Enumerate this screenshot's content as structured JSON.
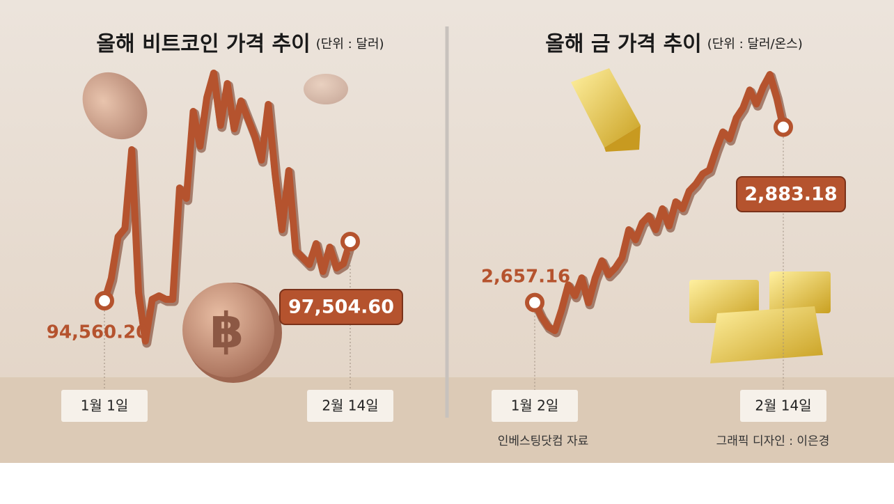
{
  "chart_data": [
    {
      "type": "line",
      "title": "올해 비트코인 가격 추이",
      "subtitle": "(단위 : 달러)",
      "categories": [
        "1월 1일",
        null,
        null,
        null,
        null,
        null,
        null,
        null,
        null,
        null,
        null,
        null,
        null,
        null,
        null,
        null,
        null,
        null,
        null,
        null,
        null,
        null,
        null,
        null,
        null,
        null,
        null,
        null,
        null,
        null,
        null,
        null,
        null,
        null,
        null,
        null,
        "2월 14일"
      ],
      "series": [
        {
          "color": "#b5532e",
          "values": [
            94560.2,
            95670,
            97747,
            98163,
            102077,
            94976,
            92551,
            94630,
            94803,
            94630,
            94630,
            100172,
            99653,
            103983,
            102251,
            104675,
            105888,
            103290,
            105368,
            103117,
            104502,
            103636,
            102770,
            101558,
            104329,
            100865,
            98094,
            101038,
            97055,
            96708,
            96362,
            97401,
            96015,
            97228,
            96189,
            96400,
            97504.6
          ],
          "value_labels": [
            "94,560.20",
            null,
            null,
            null,
            null,
            null,
            null,
            null,
            null,
            null,
            null,
            null,
            null,
            null,
            null,
            null,
            null,
            null,
            null,
            null,
            null,
            null,
            null,
            null,
            null,
            null,
            null,
            null,
            null,
            null,
            null,
            null,
            null,
            null,
            null,
            null,
            "97,504.60"
          ]
        }
      ]
    },
    {
      "type": "line",
      "title": "올해 금 가격 추이",
      "subtitle": "(단위 : 달러/온스)",
      "categories": [
        "1월 2일",
        null,
        null,
        null,
        null,
        null,
        null,
        null,
        null,
        null,
        null,
        null,
        null,
        null,
        null,
        null,
        null,
        null,
        null,
        null,
        null,
        null,
        null,
        null,
        null,
        null,
        null,
        null,
        null,
        null,
        null,
        null,
        null,
        null,
        null,
        null,
        null,
        "2월 14일"
      ],
      "series": [
        {
          "color": "#b5532e",
          "values": [
            2657.16,
            2639,
            2626,
            2621,
            2648,
            2680,
            2666,
            2689,
            2657,
            2689,
            2711,
            2693,
            2702,
            2715,
            2751,
            2738,
            2760,
            2769,
            2751,
            2778,
            2756,
            2787,
            2778,
            2801,
            2810,
            2823,
            2828,
            2854,
            2877,
            2868,
            2895,
            2908,
            2931,
            2913,
            2935,
            2951,
            2922,
            2883.18
          ],
          "value_labels": [
            "2,657.16",
            null,
            null,
            null,
            null,
            null,
            null,
            null,
            null,
            null,
            null,
            null,
            null,
            null,
            null,
            null,
            null,
            null,
            null,
            null,
            null,
            null,
            null,
            null,
            null,
            null,
            null,
            null,
            null,
            null,
            null,
            null,
            null,
            null,
            null,
            null,
            null,
            "2,883.18"
          ]
        }
      ]
    }
  ],
  "notes": {
    "source": "인베스팅닷컴 자료",
    "credit": "그래픽 디자인 : 이은경"
  }
}
